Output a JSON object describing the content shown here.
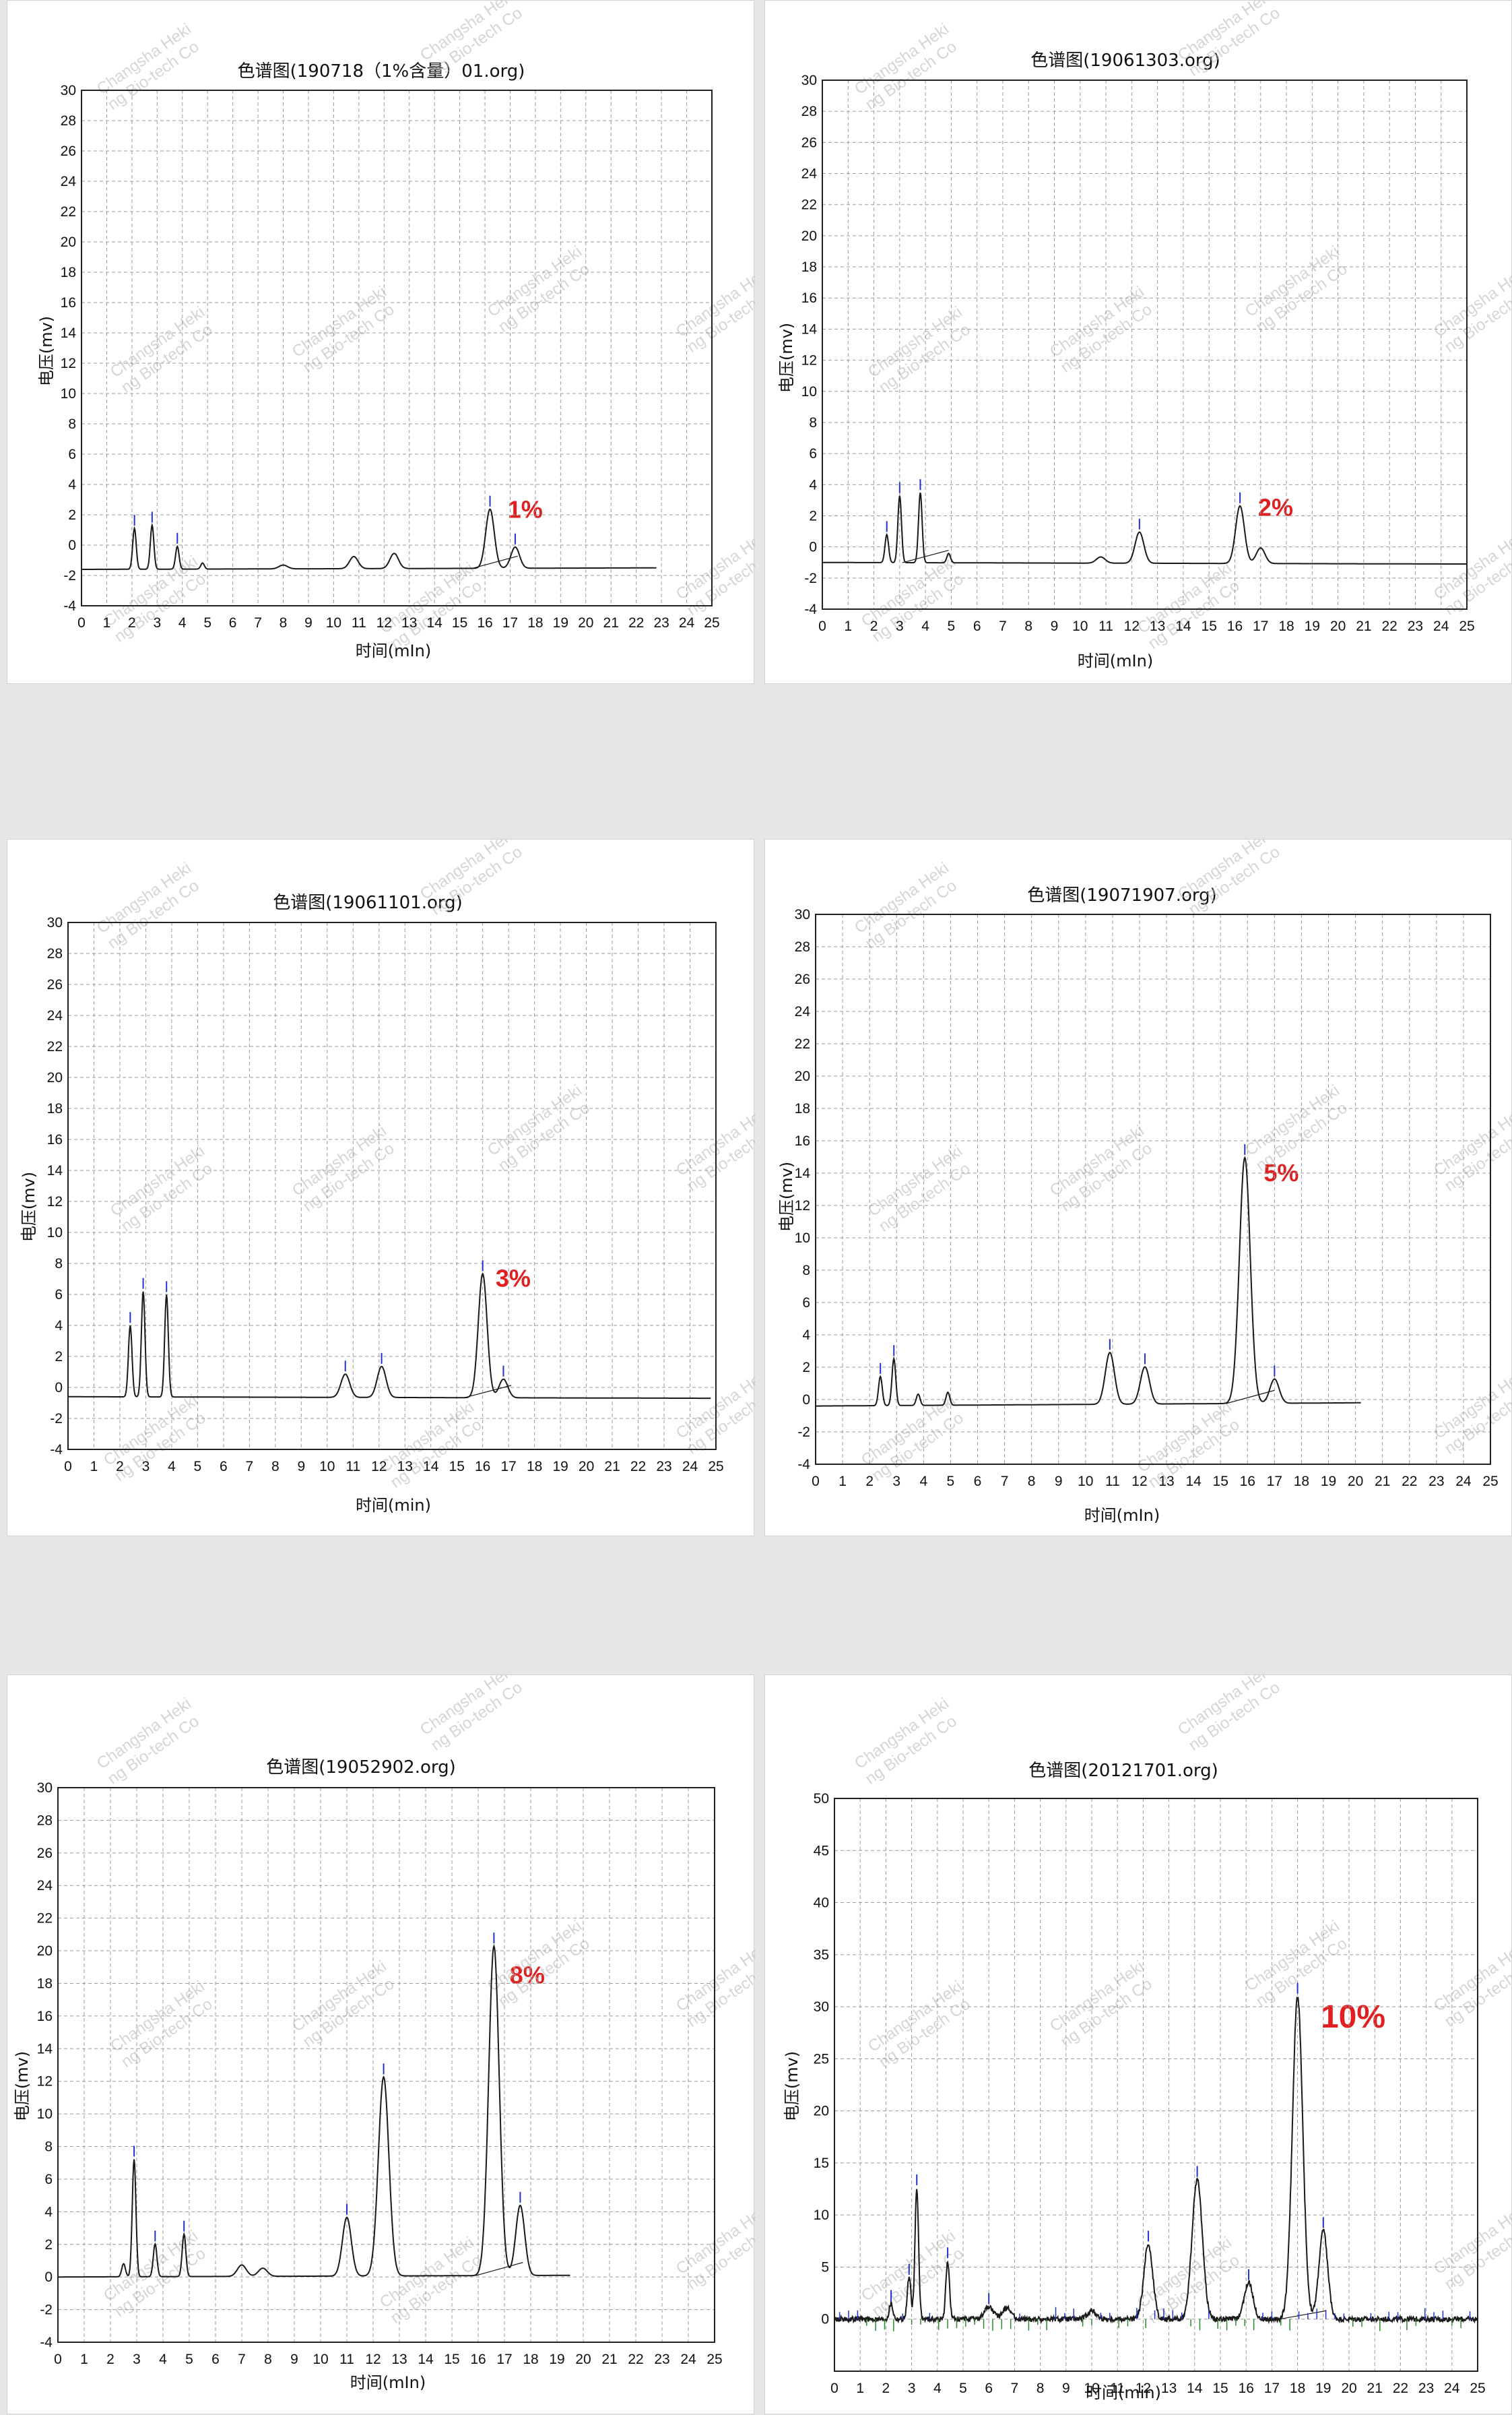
{
  "charts": [
    {
      "title": "色谱图(190718（1%含量）01.org)",
      "xlabel": "时间(mIn)",
      "ylabel": "电压(mv)",
      "percent_label": "1%"
    },
    {
      "title": "色谱图(19061303.org)",
      "xlabel": "时间(mIn)",
      "ylabel": "电压(mv)",
      "percent_label": "2%"
    },
    {
      "title": "色谱图(19061101.org)",
      "xlabel": "时间(min)",
      "ylabel": "电压(mv)",
      "percent_label": "3%"
    },
    {
      "title": "色谱图(19071907.org)",
      "xlabel": "时间(mIn)",
      "ylabel": "电压(mv)",
      "percent_label": "5%"
    },
    {
      "title": "色谱图(19052902.org)",
      "xlabel": "时间(mIn)",
      "ylabel": "电压(mv)",
      "percent_label": "8%"
    },
    {
      "title": "色谱图(20121701.org)",
      "xlabel": "时间(min)",
      "ylabel": "电压(mv)",
      "percent_label": "10%"
    }
  ],
  "watermark": {
    "line1": "Changsha Heki",
    "line2": "ng Bio-tech Co"
  },
  "colors": {
    "trace": "#1a1a1a",
    "percent_label": "#e02020",
    "peak_marker": "#2233cc",
    "grid": "#9a9a9a",
    "baseline_marker": "#2a8a2a"
  },
  "chart_data": [
    {
      "type": "line",
      "title": "色谱图(190718（1%含量）01.org)",
      "xlabel": "时间(mIn)",
      "ylabel": "电压(mv)",
      "xlim": [
        0,
        25
      ],
      "ylim": [
        -4,
        30
      ],
      "xticks": [
        0,
        1,
        2,
        3,
        4,
        5,
        6,
        7,
        8,
        9,
        10,
        11,
        12,
        13,
        14,
        15,
        16,
        17,
        18,
        19,
        20,
        21,
        22,
        23,
        24,
        25
      ],
      "yticks": [
        -4,
        -2,
        0,
        2,
        4,
        6,
        8,
        10,
        12,
        14,
        16,
        18,
        20,
        22,
        24,
        26,
        28,
        30
      ],
      "grid": true,
      "baseline": {
        "start": [
          0,
          -1.6
        ],
        "end": [
          22.8,
          -1.5
        ]
      },
      "peaks": [
        {
          "x": 2.1,
          "h": 2.7
        },
        {
          "x": 2.8,
          "h": 2.9
        },
        {
          "x": 3.8,
          "h": 1.5
        },
        {
          "x": 4.8,
          "h": 0.4
        },
        {
          "x": 8.0,
          "h": 0.25
        },
        {
          "x": 10.8,
          "h": 0.8
        },
        {
          "x": 12.4,
          "h": 1.0
        },
        {
          "x": 16.2,
          "h": 3.9
        },
        {
          "x": 17.2,
          "h": 1.4
        }
      ],
      "annotation": {
        "text": "1%",
        "x": 16.9,
        "y": 1.8
      }
    },
    {
      "type": "line",
      "title": "色谱图(19061303.org)",
      "xlabel": "时间(mIn)",
      "ylabel": "电压(mv)",
      "xlim": [
        0,
        25
      ],
      "ylim": [
        -4,
        30
      ],
      "xticks": [
        0,
        1,
        2,
        3,
        4,
        5,
        6,
        7,
        8,
        9,
        10,
        11,
        12,
        13,
        14,
        15,
        16,
        17,
        18,
        19,
        20,
        21,
        22,
        23,
        24,
        25
      ],
      "yticks": [
        -4,
        -2,
        0,
        2,
        4,
        6,
        8,
        10,
        12,
        14,
        16,
        18,
        20,
        22,
        24,
        26,
        28,
        30
      ],
      "grid": true,
      "baseline": {
        "start": [
          0,
          -1.0
        ],
        "end": [
          25,
          -1.1
        ]
      },
      "peaks": [
        {
          "x": 2.5,
          "h": 1.8
        },
        {
          "x": 3.0,
          "h": 4.3
        },
        {
          "x": 3.8,
          "h": 4.5
        },
        {
          "x": 4.9,
          "h": 0.6
        },
        {
          "x": 10.8,
          "h": 0.4
        },
        {
          "x": 12.3,
          "h": 2.0
        },
        {
          "x": 16.2,
          "h": 3.7
        },
        {
          "x": 17.0,
          "h": 1.0
        }
      ],
      "annotation": {
        "text": "2%",
        "x": 16.9,
        "y": 2.0
      }
    },
    {
      "type": "line",
      "title": "色谱图(19061101.org)",
      "xlabel": "时间(min)",
      "ylabel": "电压(mv)",
      "xlim": [
        0,
        25
      ],
      "ylim": [
        -4,
        30
      ],
      "xticks": [
        0,
        1,
        2,
        3,
        4,
        5,
        6,
        7,
        8,
        9,
        10,
        11,
        12,
        13,
        14,
        15,
        16,
        17,
        18,
        19,
        20,
        21,
        22,
        23,
        24,
        25
      ],
      "yticks": [
        -4,
        -2,
        0,
        2,
        4,
        6,
        8,
        10,
        12,
        14,
        16,
        18,
        20,
        22,
        24,
        26,
        28,
        30
      ],
      "grid": true,
      "baseline": {
        "start": [
          0,
          -0.6
        ],
        "end": [
          24.8,
          -0.7
        ]
      },
      "peaks": [
        {
          "x": 2.4,
          "h": 4.6
        },
        {
          "x": 2.9,
          "h": 6.8
        },
        {
          "x": 3.8,
          "h": 6.6
        },
        {
          "x": 10.7,
          "h": 1.5
        },
        {
          "x": 12.1,
          "h": 2.0
        },
        {
          "x": 16.0,
          "h": 8.0
        },
        {
          "x": 16.8,
          "h": 1.2
        }
      ],
      "annotation": {
        "text": "3%",
        "x": 16.5,
        "y": 6.5
      }
    },
    {
      "type": "line",
      "title": "色谱图(19071907.org)",
      "xlabel": "时间(mIn)",
      "ylabel": "电压(mv)",
      "xlim": [
        0,
        25
      ],
      "ylim": [
        -4,
        30
      ],
      "xticks": [
        0,
        1,
        2,
        3,
        4,
        5,
        6,
        7,
        8,
        9,
        10,
        11,
        12,
        13,
        14,
        15,
        16,
        17,
        18,
        19,
        20,
        21,
        22,
        23,
        24,
        25
      ],
      "yticks": [
        -4,
        -2,
        0,
        2,
        4,
        6,
        8,
        10,
        12,
        14,
        16,
        18,
        20,
        22,
        24,
        26,
        28,
        30
      ],
      "grid": true,
      "baseline": {
        "start": [
          0,
          -0.4
        ],
        "end": [
          20.2,
          -0.2
        ]
      },
      "peaks": [
        {
          "x": 2.4,
          "h": 1.8
        },
        {
          "x": 2.9,
          "h": 2.9
        },
        {
          "x": 3.8,
          "h": 0.7
        },
        {
          "x": 4.9,
          "h": 0.8
        },
        {
          "x": 10.9,
          "h": 3.2
        },
        {
          "x": 12.2,
          "h": 2.3
        },
        {
          "x": 15.9,
          "h": 15.2
        },
        {
          "x": 17.0,
          "h": 1.5
        }
      ],
      "annotation": {
        "text": "5%",
        "x": 16.6,
        "y": 13.5
      }
    },
    {
      "type": "line",
      "title": "色谱图(19052902.org)",
      "xlabel": "时间(mIn)",
      "ylabel": "电压(mv)",
      "xlim": [
        0,
        25
      ],
      "ylim": [
        -4,
        30
      ],
      "xticks": [
        0,
        1,
        2,
        3,
        4,
        5,
        6,
        7,
        8,
        9,
        10,
        11,
        12,
        13,
        14,
        15,
        16,
        17,
        18,
        19,
        20,
        21,
        22,
        23,
        24,
        25
      ],
      "yticks": [
        -4,
        -2,
        0,
        2,
        4,
        6,
        8,
        10,
        12,
        14,
        16,
        18,
        20,
        22,
        24,
        26,
        28,
        30
      ],
      "grid": true,
      "baseline": {
        "start": [
          0,
          0.0
        ],
        "end": [
          19.5,
          0.1
        ]
      },
      "peaks": [
        {
          "x": 2.5,
          "h": 0.8
        },
        {
          "x": 2.9,
          "h": 7.2
        },
        {
          "x": 3.7,
          "h": 2.0
        },
        {
          "x": 4.8,
          "h": 2.6
        },
        {
          "x": 7.0,
          "h": 0.7
        },
        {
          "x": 7.8,
          "h": 0.5
        },
        {
          "x": 11.0,
          "h": 3.6
        },
        {
          "x": 12.4,
          "h": 12.2
        },
        {
          "x": 16.6,
          "h": 20.2
        },
        {
          "x": 17.6,
          "h": 4.3
        }
      ],
      "annotation": {
        "text": "8%",
        "x": 17.2,
        "y": 18.0
      }
    },
    {
      "type": "line",
      "title": "色谱图(20121701.org)",
      "xlabel": "时间(min)",
      "ylabel": "电压(mv)",
      "xlim": [
        0,
        25
      ],
      "ylim": [
        -5,
        50
      ],
      "xticks": [
        0,
        1,
        2,
        3,
        4,
        5,
        6,
        7,
        8,
        9,
        10,
        11,
        12,
        13,
        14,
        15,
        16,
        17,
        18,
        19,
        20,
        21,
        22,
        23,
        24,
        25
      ],
      "yticks": [
        0,
        5,
        10,
        15,
        20,
        25,
        30,
        35,
        40,
        45,
        50
      ],
      "grid": true,
      "noisy_baseline": true,
      "baseline": {
        "start": [
          0,
          0.0
        ],
        "end": [
          25,
          0.0
        ]
      },
      "peaks": [
        {
          "x": 2.2,
          "h": 1.5
        },
        {
          "x": 2.9,
          "h": 4.0
        },
        {
          "x": 3.2,
          "h": 12.6
        },
        {
          "x": 4.4,
          "h": 5.6
        },
        {
          "x": 6.0,
          "h": 1.2
        },
        {
          "x": 6.7,
          "h": 1.1
        },
        {
          "x": 10.0,
          "h": 0.8
        },
        {
          "x": 12.2,
          "h": 7.2
        },
        {
          "x": 14.1,
          "h": 13.4
        },
        {
          "x": 16.1,
          "h": 3.5
        },
        {
          "x": 18.0,
          "h": 31.0
        },
        {
          "x": 19.0,
          "h": 8.5
        }
      ],
      "annotation": {
        "text": "10%",
        "x": 18.9,
        "y": 28.0
      }
    }
  ]
}
